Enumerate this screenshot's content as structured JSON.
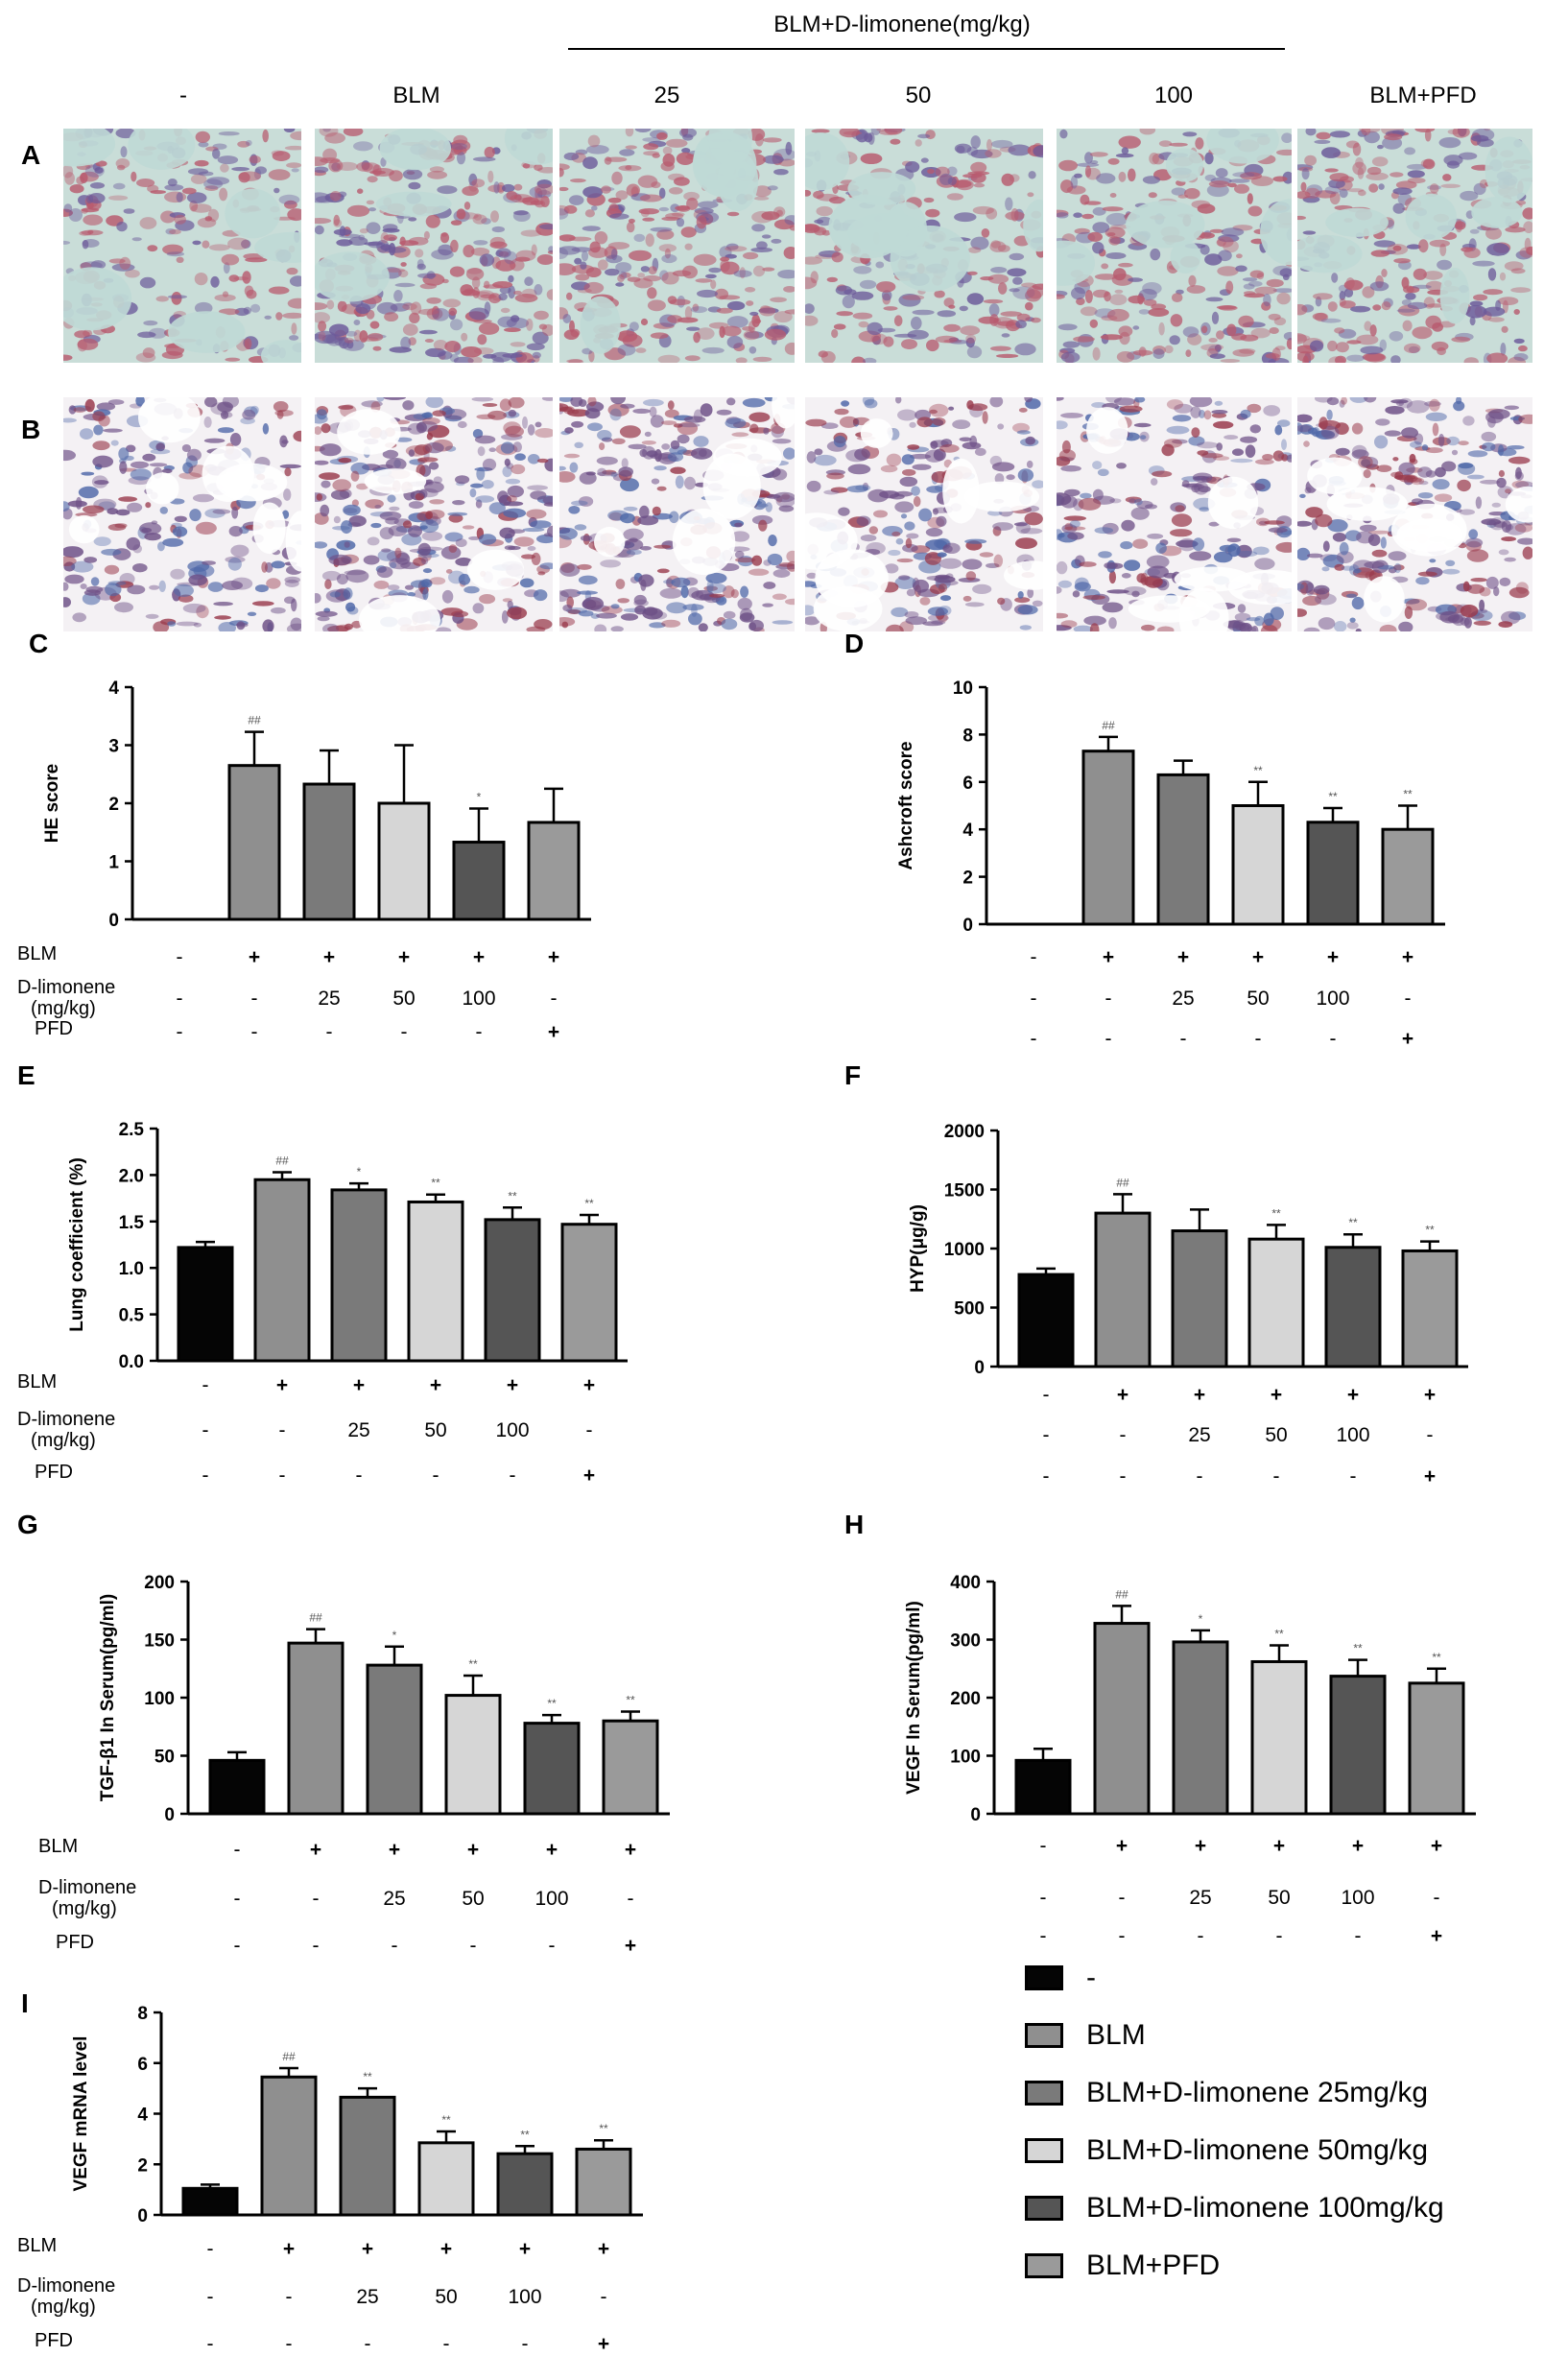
{
  "figure": {
    "header": {
      "group_label": "BLM+D-limonene(mg/kg)",
      "columns": [
        "-",
        "BLM",
        "25",
        "50",
        "100",
        "BLM+PFD"
      ]
    },
    "row_labels": [
      "A",
      "B"
    ],
    "panel_labels": [
      "C",
      "D",
      "E",
      "F",
      "G",
      "H",
      "I"
    ],
    "treatment_table": {
      "rows": [
        "BLM",
        "D-limonene\n(mg/kg)",
        "PFD"
      ],
      "BLM": [
        "-",
        "+",
        "+",
        "+",
        "+",
        "+"
      ],
      "D-limonene": [
        "-",
        "-",
        "25",
        "50",
        "100",
        "-"
      ],
      "PFD": [
        "-",
        "-",
        "-",
        "-",
        "-",
        "+"
      ]
    },
    "legend": {
      "items": [
        {
          "label": "-",
          "color": "#050505"
        },
        {
          "label": "BLM",
          "color": "#8f8f8f"
        },
        {
          "label": "BLM+D-limonene 25mg/kg",
          "color": "#7a7a7a"
        },
        {
          "label": "BLM+D-limonene 50mg/kg",
          "color": "#d6d6d6"
        },
        {
          "label": "BLM+D-limonene 100mg/kg",
          "color": "#555555"
        },
        {
          "label": "BLM+PFD",
          "color": "#9a9a9a"
        }
      ]
    }
  },
  "chart_data": [
    {
      "panel": "C",
      "type": "bar",
      "ylabel": "HE score",
      "ylim": [
        0,
        4
      ],
      "yticks": [
        0,
        1,
        2,
        3,
        4
      ],
      "categories": [
        "-",
        "BLM",
        "BLM+D-limonene 25mg/kg",
        "BLM+D-limonene 50mg/kg",
        "BLM+D-limonene 100mg/kg",
        "BLM+PFD"
      ],
      "values": [
        0,
        2.65,
        2.33,
        2.0,
        1.33,
        1.67
      ],
      "errors": [
        0,
        0.58,
        0.58,
        1.0,
        0.58,
        0.58
      ],
      "sig": [
        "",
        "##",
        "",
        "",
        "*",
        ""
      ],
      "show_zero_bar": false
    },
    {
      "panel": "D",
      "type": "bar",
      "ylabel": "Ashcroft score",
      "ylim": [
        0,
        10
      ],
      "yticks": [
        0,
        2,
        4,
        6,
        8,
        10
      ],
      "categories": [
        "-",
        "BLM",
        "BLM+D-limonene 25mg/kg",
        "BLM+D-limonene 50mg/kg",
        "BLM+D-limonene 100mg/kg",
        "BLM+PFD"
      ],
      "values": [
        0,
        7.3,
        6.3,
        5.0,
        4.3,
        4.0
      ],
      "errors": [
        0,
        0.6,
        0.6,
        1.0,
        0.6,
        1.0
      ],
      "sig": [
        "",
        "##",
        "",
        "**",
        "**",
        "**"
      ],
      "show_zero_bar": false
    },
    {
      "panel": "E",
      "type": "bar",
      "ylabel": "Lung coefficient (%)",
      "ylim": [
        0,
        2.5
      ],
      "yticks": [
        0.0,
        0.5,
        1.0,
        1.5,
        2.0,
        2.5
      ],
      "ytick_labels": [
        "0.0",
        "0.5",
        "1.0",
        "1.5",
        "2.0",
        "2.5"
      ],
      "categories": [
        "-",
        "BLM",
        "BLM+D-limonene 25mg/kg",
        "BLM+D-limonene 50mg/kg",
        "BLM+D-limonene 100mg/kg",
        "BLM+PFD"
      ],
      "values": [
        1.22,
        1.95,
        1.84,
        1.71,
        1.52,
        1.47
      ],
      "errors": [
        0.06,
        0.08,
        0.07,
        0.08,
        0.13,
        0.1
      ],
      "sig": [
        "",
        "##",
        "*",
        "**",
        "**",
        "**"
      ],
      "show_zero_bar": true
    },
    {
      "panel": "F",
      "type": "bar",
      "ylabel": "HYP(μg/g)",
      "ylim": [
        0,
        2000
      ],
      "yticks": [
        0,
        500,
        1000,
        1500,
        2000
      ],
      "categories": [
        "-",
        "BLM",
        "BLM+D-limonene 25mg/kg",
        "BLM+D-limonene 50mg/kg",
        "BLM+D-limonene 100mg/kg",
        "BLM+PFD"
      ],
      "values": [
        780,
        1300,
        1150,
        1080,
        1010,
        980
      ],
      "errors": [
        50,
        160,
        180,
        120,
        110,
        80
      ],
      "sig": [
        "",
        "##",
        "",
        "**",
        "**",
        "**"
      ],
      "show_zero_bar": true
    },
    {
      "panel": "G",
      "type": "bar",
      "ylabel": "TGF-β1 In Serum(pg/ml)",
      "ylim": [
        0,
        200
      ],
      "yticks": [
        0,
        50,
        100,
        150,
        200
      ],
      "categories": [
        "-",
        "BLM",
        "BLM+D-limonene 25mg/kg",
        "BLM+D-limonene 50mg/kg",
        "BLM+D-limonene 100mg/kg",
        "BLM+PFD"
      ],
      "values": [
        46,
        147,
        128,
        102,
        78,
        80
      ],
      "errors": [
        7,
        12,
        16,
        17,
        7,
        8
      ],
      "sig": [
        "",
        "##",
        "*",
        "**",
        "**",
        "**"
      ],
      "show_zero_bar": true
    },
    {
      "panel": "H",
      "type": "bar",
      "ylabel": "VEGF In Serum(pg/ml)",
      "ylim": [
        0,
        400
      ],
      "yticks": [
        0,
        100,
        200,
        300,
        400
      ],
      "categories": [
        "-",
        "BLM",
        "BLM+D-limonene 25mg/kg",
        "BLM+D-limonene 50mg/kg",
        "BLM+D-limonene 100mg/kg",
        "BLM+PFD"
      ],
      "values": [
        92,
        328,
        296,
        262,
        237,
        225
      ],
      "errors": [
        20,
        30,
        20,
        28,
        28,
        25
      ],
      "sig": [
        "",
        "##",
        "*",
        "**",
        "**",
        "**"
      ],
      "show_zero_bar": true
    },
    {
      "panel": "I",
      "type": "bar",
      "ylabel": "VEGF mRNA level",
      "ylim": [
        0,
        8
      ],
      "yticks": [
        0,
        2,
        4,
        6,
        8
      ],
      "categories": [
        "-",
        "BLM",
        "BLM+D-limonene 25mg/kg",
        "BLM+D-limonene 50mg/kg",
        "BLM+D-limonene 100mg/kg",
        "BLM+PFD"
      ],
      "values": [
        1.05,
        5.45,
        4.65,
        2.85,
        2.42,
        2.6
      ],
      "errors": [
        0.15,
        0.35,
        0.35,
        0.45,
        0.3,
        0.35
      ],
      "sig": [
        "",
        "##",
        "**",
        "**",
        "**",
        "**"
      ],
      "show_zero_bar": true
    }
  ]
}
